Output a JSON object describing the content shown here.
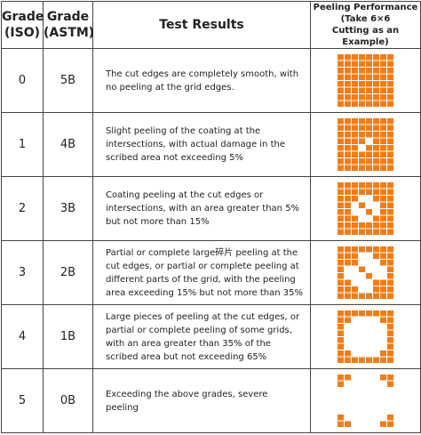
{
  "table": {
    "header": [
      [
        "Grade",
        "(ISO)"
      ],
      [
        "Grade",
        "(ASTM)"
      ],
      [
        "Test Results"
      ],
      [
        "Peeling Performance",
        "(Take 6×6",
        "Cutting as an Example)"
      ]
    ],
    "rows": [
      [
        "0",
        "5B",
        "The cut edges are completely smooth, with no peeling at the grid edges."
      ],
      [
        "1",
        "4B",
        "Slight peeling of the coating at the intersections, with actual damage in the scribed area not exceeding 5%"
      ],
      [
        "2",
        "3B",
        "Coating peeling at the cut edges or intersections, with an area greater than 5% but not more than 15%"
      ],
      [
        "3",
        "2B",
        "Partial or complete large碎片 peeling at the cut edges, or partial or complete peeling at different parts of the grid, with the peeling area exceeding 15% but not more than 35%"
      ],
      [
        "4",
        "1B",
        "Large pieces of peeling at the cut edges, or partial or complete peeling of some grids, with an area greater than 35% of the scribed area but not exceeding 65%"
      ],
      [
        "5",
        "0B",
        "Exceeding the above grades, severe peeling"
      ]
    ]
  }
}
